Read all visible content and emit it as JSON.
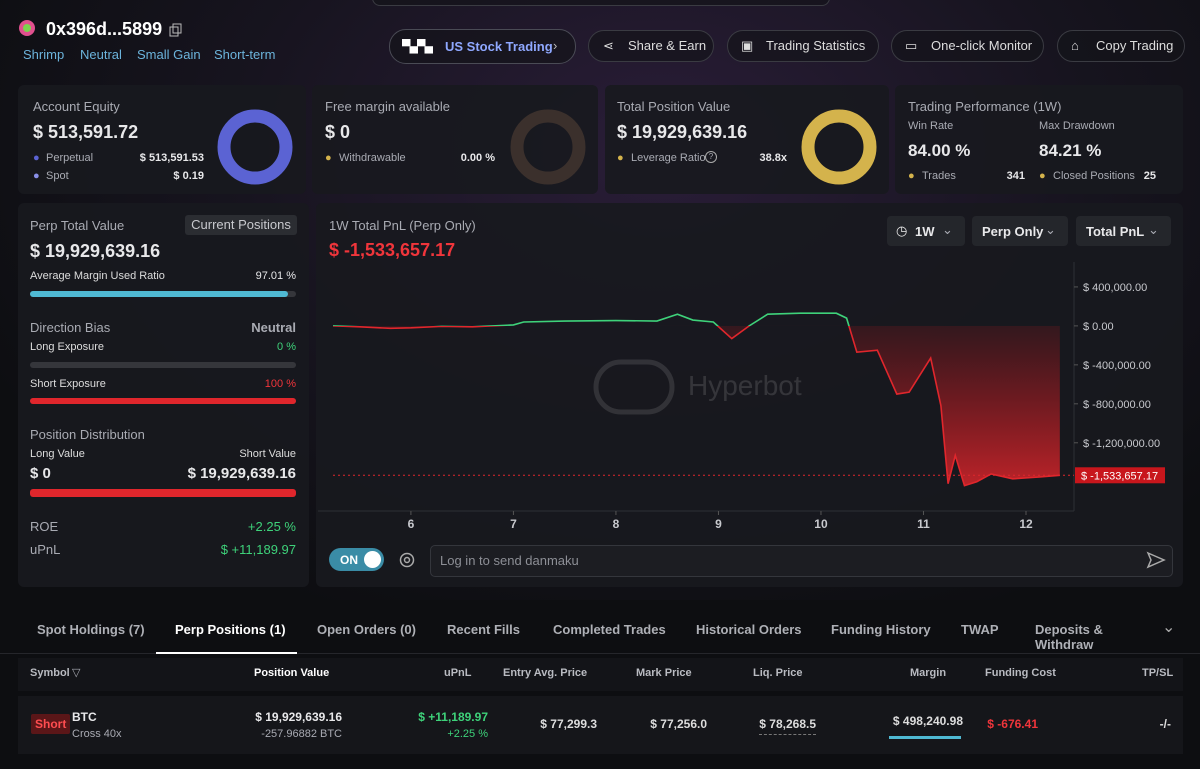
{
  "header": {
    "address": "0x396d...5899",
    "tags": [
      "Shrimp",
      "Neutral",
      "Small Gain",
      "Short-term"
    ]
  },
  "nav": {
    "us_stock": "US Stock Trading",
    "items": [
      "Share & Earn",
      "Trading Statistics",
      "One-click Monitor",
      "Copy Trading"
    ]
  },
  "summary": [
    {
      "title": "Account Equity",
      "value": "$ 513,591.72",
      "rows": [
        [
          "Perpetual",
          "$ 513,591.53"
        ],
        [
          "Spot",
          "$ 0.19"
        ]
      ]
    },
    {
      "title": "Free margin available",
      "value": "$ 0",
      "rows": [
        [
          "Withdrawable",
          "0.00 %"
        ]
      ]
    },
    {
      "title": "Total Position Value",
      "value": "$ 19,929,639.16",
      "rows": [
        [
          "Leverage Ratio",
          "38.8x"
        ]
      ]
    }
  ],
  "performance": {
    "title": "Trading Performance (1W)",
    "win_rate_label": "Win Rate",
    "win_rate": "84.00 %",
    "drawdown_label": "Max Drawdown",
    "drawdown": "84.21 %",
    "trades_label": "Trades",
    "trades": "341",
    "closed_label": "Closed Positions",
    "closed": "25"
  },
  "perp": {
    "title": "Perp Total Value",
    "button": "Current Positions",
    "value": "$ 19,929,639.16",
    "margin_label": "Average Margin Used Ratio",
    "margin_ratio": {
      "value": 97.01,
      "label": "97.01 %"
    },
    "bias_label": "Direction Bias",
    "bias": "Neutral",
    "long_label": "Long Exposure",
    "long": {
      "value": 0,
      "label": "0 %"
    },
    "short_label": "Short Exposure",
    "short": {
      "value": 100,
      "label": "100 %"
    },
    "dist_label": "Position Distribution",
    "long_value_label": "Long Value",
    "long_value": "$ 0",
    "short_value_label": "Short Value",
    "short_value": "$ 19,929,639.16",
    "roe_label": "ROE",
    "roe": "+2.25 %",
    "upnl_label": "uPnL",
    "upnl": "$ +11,189.97"
  },
  "chart": {
    "type": "line",
    "title": "1W Total PnL (Perp Only)",
    "total": "$ -1,533,657.17",
    "filters": [
      "1W",
      "Perp Only",
      "Total PnL"
    ],
    "watermark": "Hyperbot",
    "x": [
      5.24,
      5.5,
      5.8,
      6.0,
      6.3,
      6.6,
      6.8,
      7.0,
      7.1,
      7.5,
      8.0,
      8.4,
      8.6,
      8.75,
      8.95,
      9.13,
      9.3,
      9.48,
      9.8,
      10.15,
      10.25,
      10.35,
      10.55,
      10.74,
      10.86,
      11.07,
      11.17,
      11.24,
      11.31,
      11.4,
      11.52,
      11.66,
      11.87,
      12.15,
      12.33
    ],
    "values": [
      0,
      -10000,
      -25000,
      -20000,
      -5000,
      -10000,
      0,
      10000,
      40000,
      50000,
      55000,
      50000,
      120000,
      60000,
      40000,
      -130000,
      0,
      120000,
      130000,
      130000,
      80000,
      -270000,
      -250000,
      -700000,
      -680000,
      -330000,
      -820000,
      -1620000,
      -1330000,
      -1640000,
      -1600000,
      -1520000,
      -1570000,
      -1550000,
      -1533657.17
    ],
    "xlim": [
      5.24,
      12.4
    ],
    "xticks": [
      6,
      7,
      8,
      9,
      10,
      11,
      12
    ],
    "ylim": [
      -1890000,
      625000
    ],
    "yticks": [
      {
        "value": 400000,
        "label": "$ 400,000.00"
      },
      {
        "value": 0,
        "label": "$ 0.00"
      },
      {
        "value": -400000,
        "label": "$ -400,000.00"
      },
      {
        "value": -800000,
        "label": "$ -800,000.00"
      },
      {
        "value": -1200000,
        "label": "$ -1,200,000.00"
      }
    ]
  },
  "danmaku": {
    "toggle": "ON",
    "placeholder": "Log in to send danmaku"
  },
  "tabs": [
    "Spot Holdings (7)",
    "Perp Positions (1)",
    "Open Orders (0)",
    "Recent Fills",
    "Completed Trades",
    "Historical Orders",
    "Funding History",
    "TWAP",
    "Deposits & Withdraw"
  ],
  "table": {
    "columns": [
      "Symbol",
      "Position Value",
      "uPnL",
      "Entry Avg. Price",
      "Mark Price",
      "Liq. Price",
      "Margin",
      "Funding Cost",
      "TP/SL"
    ],
    "rows": [
      {
        "side": "Short",
        "symbol": "BTC",
        "mode": "Cross 40x",
        "position_value": "$ 19,929,639.16",
        "size": "-257.96882 BTC",
        "upnl": "$ +11,189.97",
        "upnl_pct": "+2.25 %",
        "entry": "$ 77,299.3",
        "mark": "$ 77,256.0",
        "liq": "$ 78,268.5",
        "margin": "$ 498,240.98",
        "funding": "$ -676.41",
        "tpsl": "-/-"
      }
    ]
  }
}
